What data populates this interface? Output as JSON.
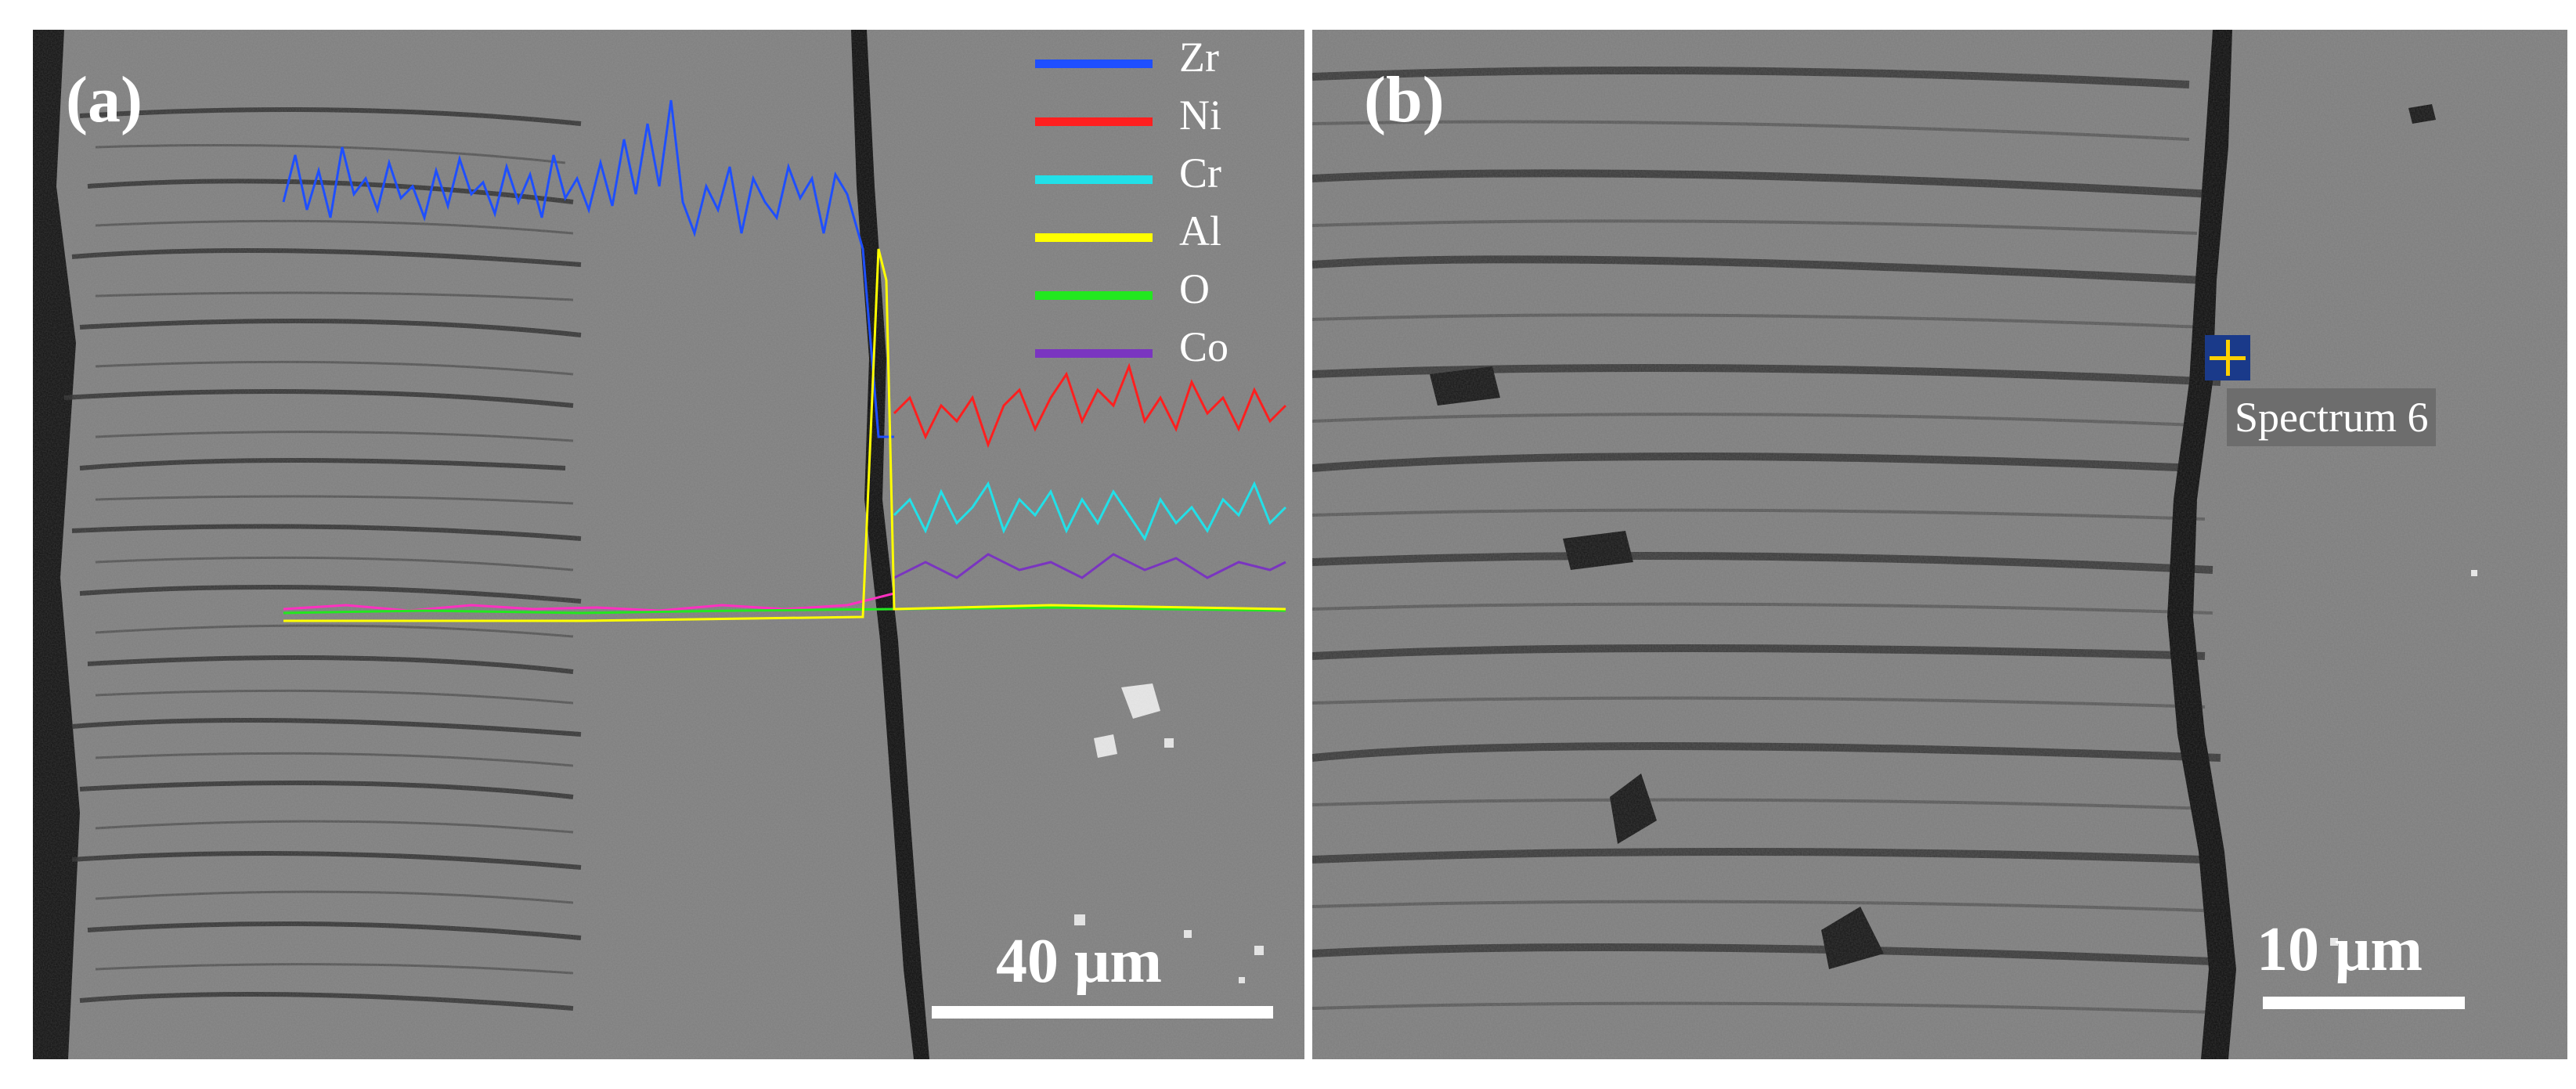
{
  "panel_a": {
    "label": "(a)",
    "scale_text": "40 μm",
    "legend": [
      {
        "name": "Zr",
        "color": "#1f4fff"
      },
      {
        "name": "Ni",
        "color": "#ff1f1f"
      },
      {
        "name": "Cr",
        "color": "#22e0e8"
      },
      {
        "name": "Al",
        "color": "#ffff00"
      },
      {
        "name": "O",
        "color": "#22e81f"
      },
      {
        "name": "Co",
        "color": "#7a35c0"
      }
    ]
  },
  "panel_b": {
    "label": "(b)",
    "scale_text": "10 μm",
    "spectrum_label": "Spectrum 6"
  }
}
